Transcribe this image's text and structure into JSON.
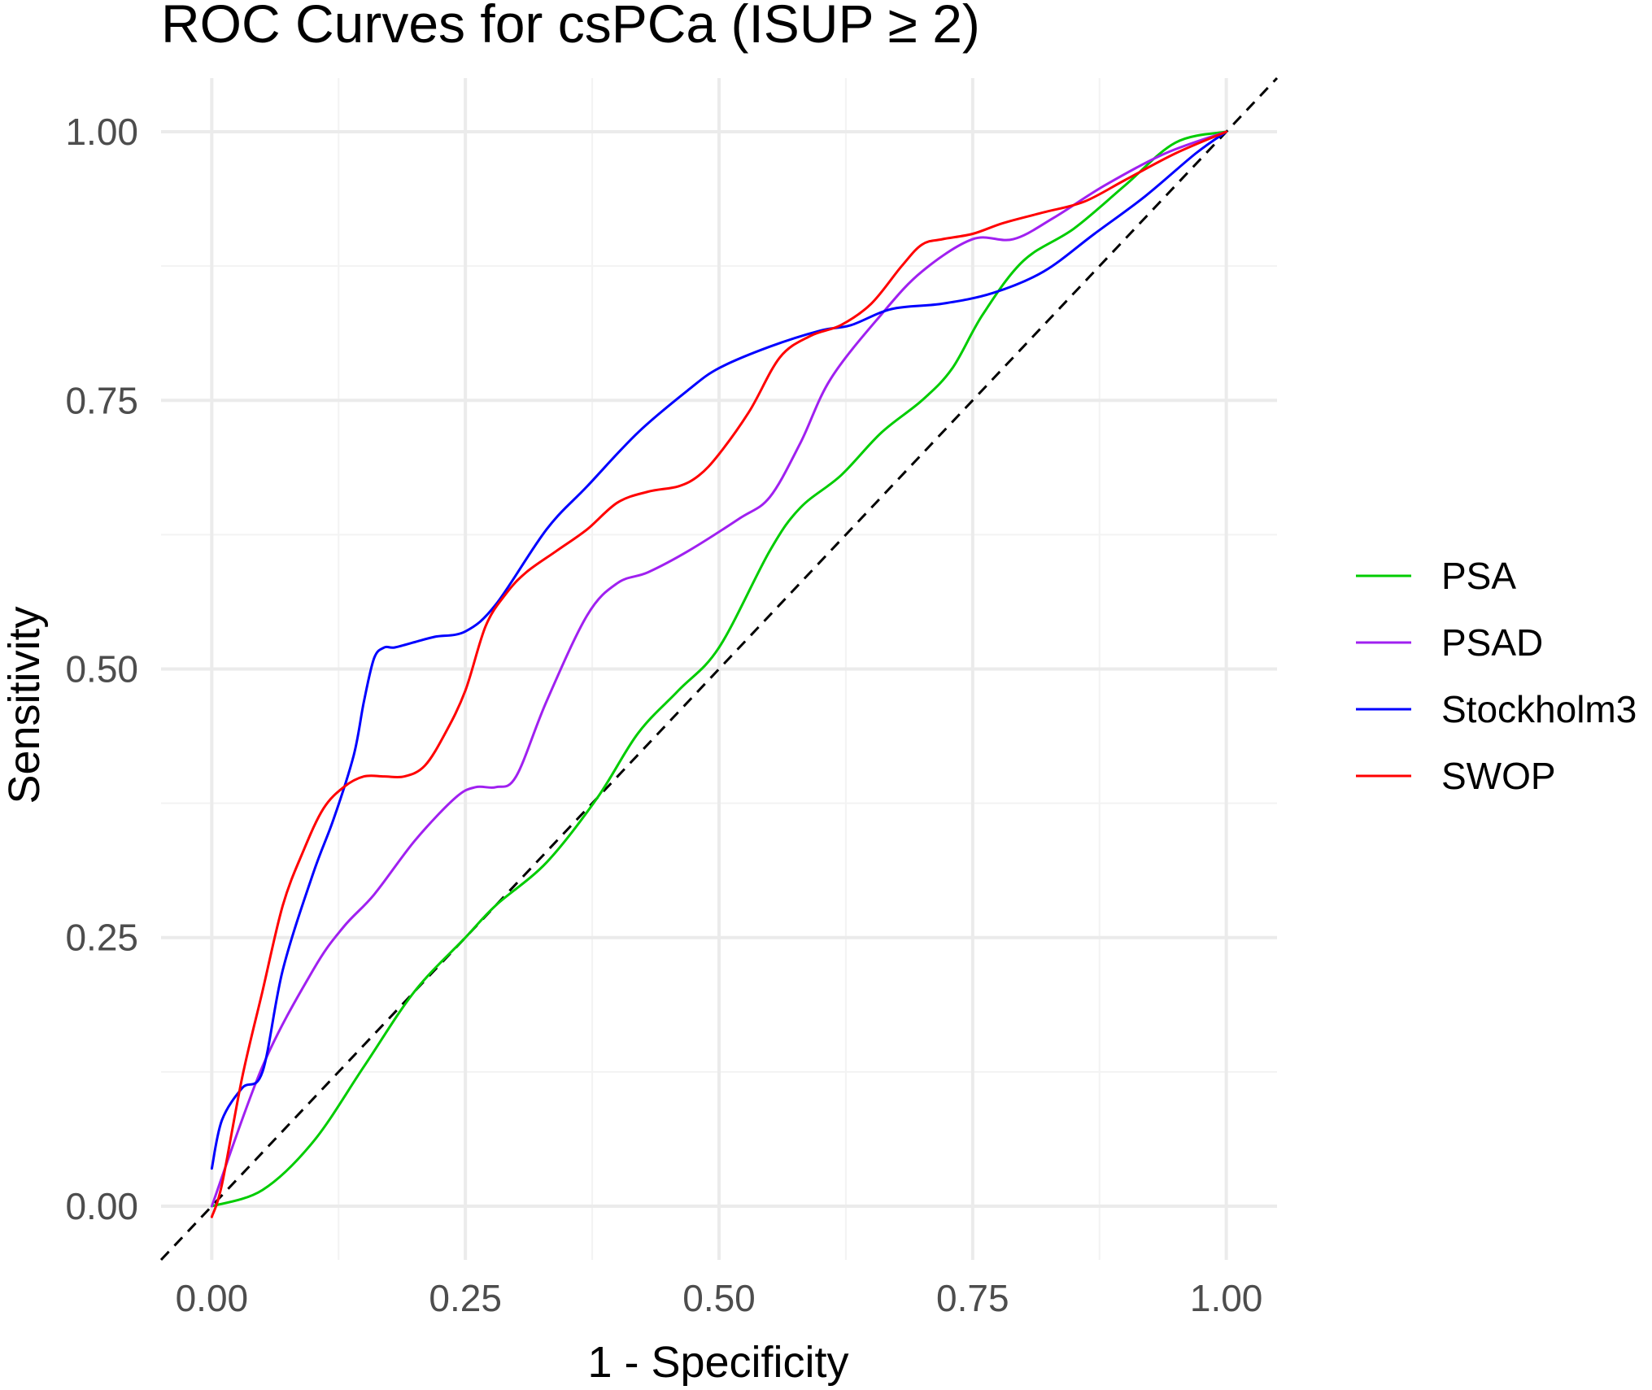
{
  "chart_data": {
    "type": "line",
    "title": "ROC Curves for csPCa (ISUP ≥ 2)",
    "xlabel": "1 - Specificity",
    "ylabel": "Sensitivity",
    "xlim": [
      -0.05,
      1.05
    ],
    "ylim": [
      -0.05,
      1.05
    ],
    "x_ticks": [
      "0.00",
      "0.25",
      "0.50",
      "0.75",
      "1.00"
    ],
    "y_ticks": [
      "0.00",
      "0.25",
      "0.50",
      "0.75",
      "1.00"
    ],
    "grid": true,
    "legend_position": "right",
    "reference_line": {
      "style": "dashed",
      "color": "#000000",
      "x": [
        -0.05,
        1.05
      ],
      "y": [
        -0.05,
        1.05
      ]
    },
    "series": [
      {
        "name": "PSA",
        "color": "#00cc00",
        "x": [
          0.0,
          0.05,
          0.1,
          0.15,
          0.2,
          0.25,
          0.28,
          0.33,
          0.38,
          0.42,
          0.46,
          0.5,
          0.55,
          0.58,
          0.62,
          0.66,
          0.7,
          0.73,
          0.76,
          0.8,
          0.85,
          0.9,
          0.95,
          1.0
        ],
        "y": [
          0.0,
          0.015,
          0.06,
          0.13,
          0.2,
          0.25,
          0.28,
          0.32,
          0.38,
          0.44,
          0.48,
          0.52,
          0.61,
          0.65,
          0.68,
          0.72,
          0.75,
          0.78,
          0.83,
          0.88,
          0.91,
          0.95,
          0.99,
          1.0
        ]
      },
      {
        "name": "PSAD",
        "color": "#a020f0",
        "x": [
          0.0,
          0.05,
          0.1,
          0.13,
          0.16,
          0.2,
          0.24,
          0.26,
          0.28,
          0.3,
          0.33,
          0.37,
          0.4,
          0.43,
          0.47,
          0.52,
          0.55,
          0.58,
          0.61,
          0.66,
          0.7,
          0.75,
          0.79,
          0.83,
          0.88,
          0.94,
          1.0
        ],
        "y": [
          0.0,
          0.13,
          0.22,
          0.26,
          0.29,
          0.34,
          0.38,
          0.39,
          0.39,
          0.4,
          0.47,
          0.55,
          0.58,
          0.59,
          0.61,
          0.64,
          0.66,
          0.71,
          0.77,
          0.83,
          0.87,
          0.9,
          0.9,
          0.92,
          0.95,
          0.98,
          1.0
        ]
      },
      {
        "name": "Stockholm3",
        "color": "#0000ff",
        "x": [
          0.0,
          0.01,
          0.03,
          0.05,
          0.07,
          0.1,
          0.12,
          0.14,
          0.15,
          0.16,
          0.17,
          0.18,
          0.2,
          0.22,
          0.25,
          0.28,
          0.33,
          0.37,
          0.42,
          0.47,
          0.5,
          0.55,
          0.6,
          0.63,
          0.67,
          0.72,
          0.77,
          0.82,
          0.87,
          0.92,
          0.97,
          1.0
        ],
        "y": [
          0.035,
          0.08,
          0.11,
          0.125,
          0.22,
          0.31,
          0.36,
          0.42,
          0.47,
          0.51,
          0.52,
          0.52,
          0.525,
          0.53,
          0.535,
          0.56,
          0.63,
          0.67,
          0.72,
          0.76,
          0.78,
          0.8,
          0.815,
          0.82,
          0.835,
          0.84,
          0.85,
          0.87,
          0.905,
          0.94,
          0.98,
          1.0
        ]
      },
      {
        "name": "SWOP",
        "color": "#ff0000",
        "x": [
          0.0,
          0.01,
          0.03,
          0.05,
          0.07,
          0.09,
          0.11,
          0.13,
          0.15,
          0.17,
          0.19,
          0.21,
          0.23,
          0.25,
          0.27,
          0.29,
          0.31,
          0.34,
          0.37,
          0.4,
          0.43,
          0.46,
          0.48,
          0.5,
          0.53,
          0.56,
          0.59,
          0.62,
          0.65,
          0.68,
          0.7,
          0.72,
          0.75,
          0.78,
          0.82,
          0.86,
          0.9,
          0.95,
          1.0
        ],
        "y": [
          -0.01,
          0.02,
          0.12,
          0.2,
          0.28,
          0.33,
          0.37,
          0.39,
          0.4,
          0.4,
          0.4,
          0.41,
          0.44,
          0.48,
          0.54,
          0.57,
          0.59,
          0.61,
          0.63,
          0.655,
          0.665,
          0.67,
          0.68,
          0.7,
          0.74,
          0.79,
          0.81,
          0.82,
          0.84,
          0.875,
          0.895,
          0.9,
          0.905,
          0.915,
          0.925,
          0.935,
          0.955,
          0.98,
          1.0
        ]
      }
    ]
  }
}
